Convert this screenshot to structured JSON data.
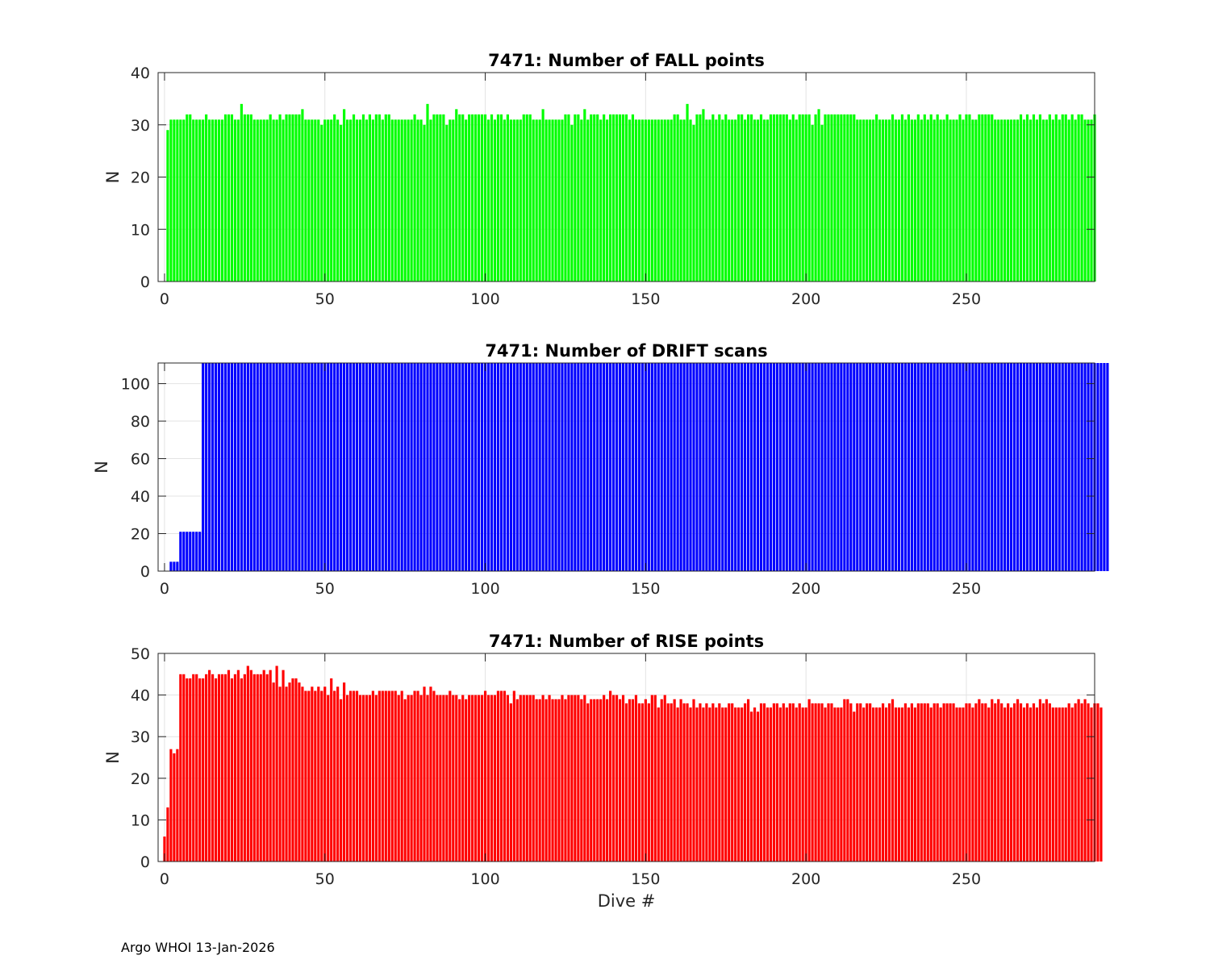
{
  "footer": "Argo WHOI 13-Jan-2026",
  "chart_data": [
    {
      "type": "bar",
      "title": "7471: Number of FALL points",
      "xlabel": "",
      "ylabel": "N",
      "color": "#00ff00",
      "xlim": [
        -2,
        290
      ],
      "ylim": [
        0,
        40
      ],
      "xticks": [
        0,
        50,
        100,
        150,
        200,
        250
      ],
      "yticks": [
        0,
        10,
        20,
        30,
        40
      ],
      "grid": true,
      "x_start": 1,
      "values": [
        29,
        31,
        31,
        31,
        31,
        31,
        32,
        32,
        31,
        31,
        31,
        31,
        32,
        31,
        31,
        31,
        31,
        31,
        32,
        32,
        32,
        31,
        31,
        34,
        32,
        32,
        32,
        31,
        31,
        31,
        31,
        31,
        32,
        31,
        31,
        32,
        31,
        32,
        32,
        32,
        32,
        32,
        33,
        31,
        31,
        31,
        31,
        31,
        30,
        31,
        31,
        31,
        32,
        31,
        30,
        33,
        31,
        31,
        32,
        31,
        31,
        32,
        31,
        32,
        31,
        32,
        32,
        31,
        32,
        32,
        31,
        31,
        31,
        31,
        31,
        31,
        31,
        32,
        31,
        31,
        30,
        34,
        31,
        32,
        32,
        32,
        32,
        30,
        31,
        31,
        33,
        32,
        32,
        31,
        32,
        32,
        32,
        32,
        32,
        32,
        31,
        32,
        31,
        32,
        32,
        31,
        32,
        31,
        31,
        31,
        31,
        32,
        32,
        32,
        31,
        31,
        31,
        33,
        31,
        31,
        31,
        31,
        31,
        31,
        32,
        32,
        30,
        32,
        32,
        31,
        33,
        31,
        32,
        32,
        32,
        31,
        32,
        31,
        32,
        32,
        32,
        32,
        32,
        32,
        31,
        32,
        31,
        31,
        31,
        31,
        31,
        31,
        31,
        31,
        31,
        31,
        31,
        31,
        32,
        32,
        31,
        31,
        34,
        31,
        30,
        32,
        32,
        33,
        31,
        31,
        32,
        31,
        32,
        31,
        32,
        31,
        31,
        31,
        32,
        32,
        31,
        32,
        32,
        31,
        31,
        32,
        31,
        31,
        32,
        32,
        32,
        32,
        32,
        32,
        31,
        32,
        31,
        32,
        32,
        32,
        32,
        30,
        32,
        33,
        30,
        32,
        32,
        32,
        32,
        32,
        32,
        32,
        32,
        32,
        32,
        31,
        31,
        31,
        31,
        31,
        31,
        32,
        31,
        31,
        31,
        31,
        32,
        31,
        31,
        32,
        31,
        32,
        31,
        31,
        32,
        31,
        32,
        31,
        32,
        31,
        32,
        31,
        31,
        32,
        31,
        31,
        31,
        32,
        31,
        32,
        32,
        31,
        31,
        32,
        32,
        32,
        32,
        32,
        31,
        31,
        31,
        31,
        31,
        31,
        31,
        31,
        32,
        31,
        32,
        31,
        32,
        31,
        32,
        31,
        31,
        32,
        31,
        32,
        31,
        32,
        32,
        31,
        32,
        31,
        32,
        32,
        31,
        31,
        31,
        32
      ]
    },
    {
      "type": "bar",
      "title": "7471: Number of DRIFT scans",
      "xlabel": "",
      "ylabel": "N",
      "color": "#0000ff",
      "xlim": [
        -2,
        290
      ],
      "ylim": [
        0,
        111
      ],
      "xticks": [
        0,
        50,
        100,
        150,
        200,
        250
      ],
      "yticks": [
        0,
        20,
        40,
        60,
        80,
        100
      ],
      "grid": true,
      "x_start": 1,
      "values": [
        0,
        5,
        5,
        5,
        21,
        21,
        21,
        21,
        21,
        21,
        21,
        111,
        111,
        111,
        111,
        111,
        111,
        111,
        111,
        111,
        111,
        111,
        111,
        111,
        111,
        111,
        111,
        111,
        111,
        111,
        111,
        111,
        111,
        111,
        111,
        111,
        111,
        111,
        111,
        111,
        111,
        111,
        111,
        111,
        111,
        111,
        111,
        111,
        111,
        111,
        111,
        111,
        111,
        111,
        111,
        111,
        111,
        111,
        111,
        111,
        111,
        111,
        111,
        111,
        111,
        111,
        111,
        111,
        111,
        111,
        111,
        111,
        111,
        111,
        111,
        111,
        111,
        111,
        111,
        111,
        111,
        111,
        111,
        111,
        111,
        111,
        111,
        111,
        111,
        111,
        111,
        111,
        111,
        111,
        111,
        111,
        111,
        111,
        111,
        111,
        111,
        111,
        111,
        111,
        111,
        111,
        111,
        111,
        111,
        111,
        111,
        111,
        111,
        111,
        111,
        111,
        111,
        111,
        111,
        111,
        111,
        111,
        111,
        111,
        111,
        111,
        111,
        111,
        111,
        111,
        111,
        111,
        111,
        111,
        111,
        111,
        111,
        111,
        111,
        111,
        111,
        111,
        111,
        111,
        111,
        111,
        111,
        111,
        111,
        111,
        111,
        111,
        111,
        111,
        111,
        111,
        111,
        111,
        111,
        111,
        111,
        111,
        111,
        111,
        111,
        111,
        111,
        111,
        111,
        111,
        111,
        111,
        111,
        111,
        111,
        111,
        111,
        111,
        111,
        111,
        111,
        111,
        111,
        111,
        111,
        111,
        111,
        111,
        111,
        111,
        111,
        111,
        111,
        111,
        111,
        111,
        111,
        111,
        111,
        111,
        111,
        111,
        111,
        111,
        111,
        111,
        111,
        111,
        111,
        111,
        111,
        111,
        111,
        111,
        111,
        111,
        111,
        111,
        111,
        111,
        111,
        111,
        111,
        111,
        111,
        111,
        111,
        111,
        111,
        111,
        111,
        111,
        111,
        111,
        111,
        111,
        111,
        111,
        111,
        111,
        111,
        111,
        111,
        111,
        111,
        111,
        111,
        111,
        111,
        111,
        111,
        111,
        111,
        111,
        111,
        111,
        111,
        111,
        111,
        111,
        111,
        111,
        111,
        111,
        111,
        111,
        111,
        111,
        111,
        111,
        111,
        111,
        111,
        111,
        111,
        111,
        111,
        111,
        111,
        111,
        111,
        111,
        111,
        111,
        111,
        111,
        111,
        111,
        111,
        111,
        111,
        111,
        111,
        111
      ]
    },
    {
      "type": "bar",
      "title": "7471: Number of RISE points",
      "xlabel": "Dive #",
      "ylabel": "N",
      "color": "#ff0000",
      "xlim": [
        -2,
        290
      ],
      "ylim": [
        0,
        50
      ],
      "xticks": [
        0,
        50,
        100,
        150,
        200,
        250
      ],
      "yticks": [
        0,
        10,
        20,
        30,
        40,
        50
      ],
      "grid": true,
      "x_start": 0,
      "values": [
        6,
        13,
        27,
        26,
        27,
        45,
        45,
        44,
        44,
        45,
        45,
        44,
        44,
        45,
        46,
        45,
        44,
        45,
        45,
        45,
        46,
        44,
        45,
        46,
        44,
        45,
        47,
        46,
        45,
        45,
        45,
        46,
        45,
        46,
        43,
        47,
        42,
        46,
        42,
        43,
        44,
        44,
        43,
        42,
        41,
        41,
        42,
        41,
        42,
        41,
        42,
        40,
        44,
        41,
        42,
        39,
        43,
        40,
        41,
        41,
        41,
        40,
        40,
        40,
        40,
        41,
        40,
        41,
        41,
        41,
        41,
        41,
        41,
        40,
        41,
        39,
        40,
        40,
        41,
        41,
        40,
        42,
        40,
        42,
        41,
        40,
        40,
        40,
        40,
        41,
        40,
        40,
        39,
        40,
        39,
        40,
        40,
        40,
        40,
        40,
        41,
        40,
        40,
        40,
        41,
        41,
        41,
        40,
        38,
        41,
        39,
        40,
        40,
        40,
        40,
        40,
        39,
        39,
        40,
        39,
        40,
        39,
        39,
        39,
        40,
        39,
        40,
        40,
        40,
        40,
        39,
        40,
        38,
        39,
        39,
        39,
        39,
        40,
        39,
        41,
        40,
        40,
        39,
        40,
        38,
        39,
        39,
        40,
        38,
        38,
        39,
        38,
        40,
        40,
        37,
        39,
        40,
        38,
        38,
        39,
        37,
        39,
        38,
        38,
        37,
        39,
        37,
        38,
        37,
        38,
        37,
        38,
        37,
        38,
        37,
        37,
        38,
        38,
        37,
        37,
        37,
        38,
        39,
        36,
        37,
        36,
        38,
        38,
        37,
        37,
        38,
        38,
        37,
        38,
        37,
        38,
        38,
        37,
        38,
        37,
        37,
        39,
        38,
        38,
        38,
        38,
        37,
        38,
        38,
        37,
        37,
        37,
        39,
        39,
        38,
        36,
        38,
        38,
        37,
        38,
        38,
        37,
        37,
        37,
        38,
        37,
        38,
        39,
        37,
        37,
        37,
        38,
        37,
        38,
        37,
        38,
        38,
        38,
        38,
        37,
        38,
        38,
        37,
        38,
        38,
        38,
        38,
        37,
        37,
        37,
        38,
        38,
        37,
        38,
        39,
        38,
        38,
        37,
        39,
        38,
        39,
        38,
        37,
        38,
        37,
        38,
        39,
        38,
        37,
        38,
        37,
        38,
        37,
        39,
        38,
        39,
        38,
        37,
        37,
        37,
        37,
        37,
        38,
        37,
        38,
        39,
        38,
        39,
        38,
        37,
        38,
        38,
        37
      ]
    }
  ]
}
